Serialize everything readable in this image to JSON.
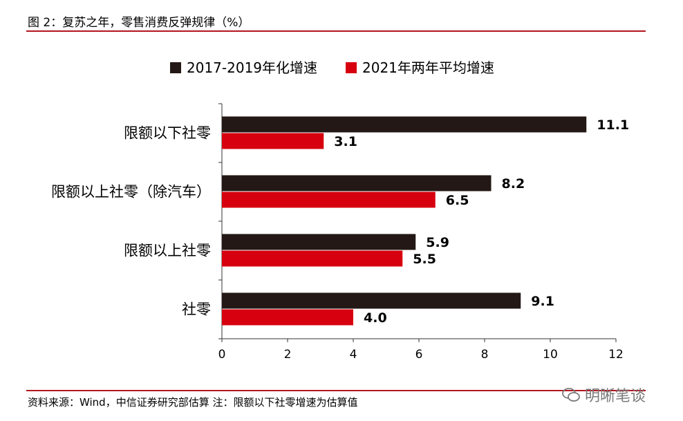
{
  "figure": {
    "caption": "图 2：复苏之年，零售消费反弹规律（%）",
    "source_note": "资料来源：Wind，中信证券研究部估算 注：限额以下社零增速为估算值",
    "watermark": "明晰笔谈"
  },
  "chart_data": {
    "type": "bar",
    "orientation": "horizontal",
    "categories": [
      "限额以下社零",
      "限额以上社零（除汽车）",
      "限额以上社零",
      "社零"
    ],
    "series": [
      {
        "name": "2017-2019年化增速",
        "color": "#231815",
        "values": [
          11.1,
          8.2,
          5.9,
          9.1
        ]
      },
      {
        "name": "2021年两年平均增速",
        "color": "#d7000f",
        "values": [
          3.1,
          6.5,
          5.5,
          4.0
        ]
      }
    ],
    "data_labels": [
      [
        "11.1",
        "8.2",
        "5.9",
        "9.1"
      ],
      [
        "3.1",
        "6.5",
        "5.5",
        "4.0"
      ]
    ],
    "xlim": [
      0,
      12
    ],
    "x_ticks": [
      0,
      2,
      4,
      6,
      8,
      10,
      12
    ],
    "x_tick_labels": [
      "0",
      "2",
      "4",
      "6",
      "8",
      "10",
      "12"
    ],
    "xlabel": "",
    "ylabel": "",
    "grid": false,
    "legend_position": "top-center"
  }
}
